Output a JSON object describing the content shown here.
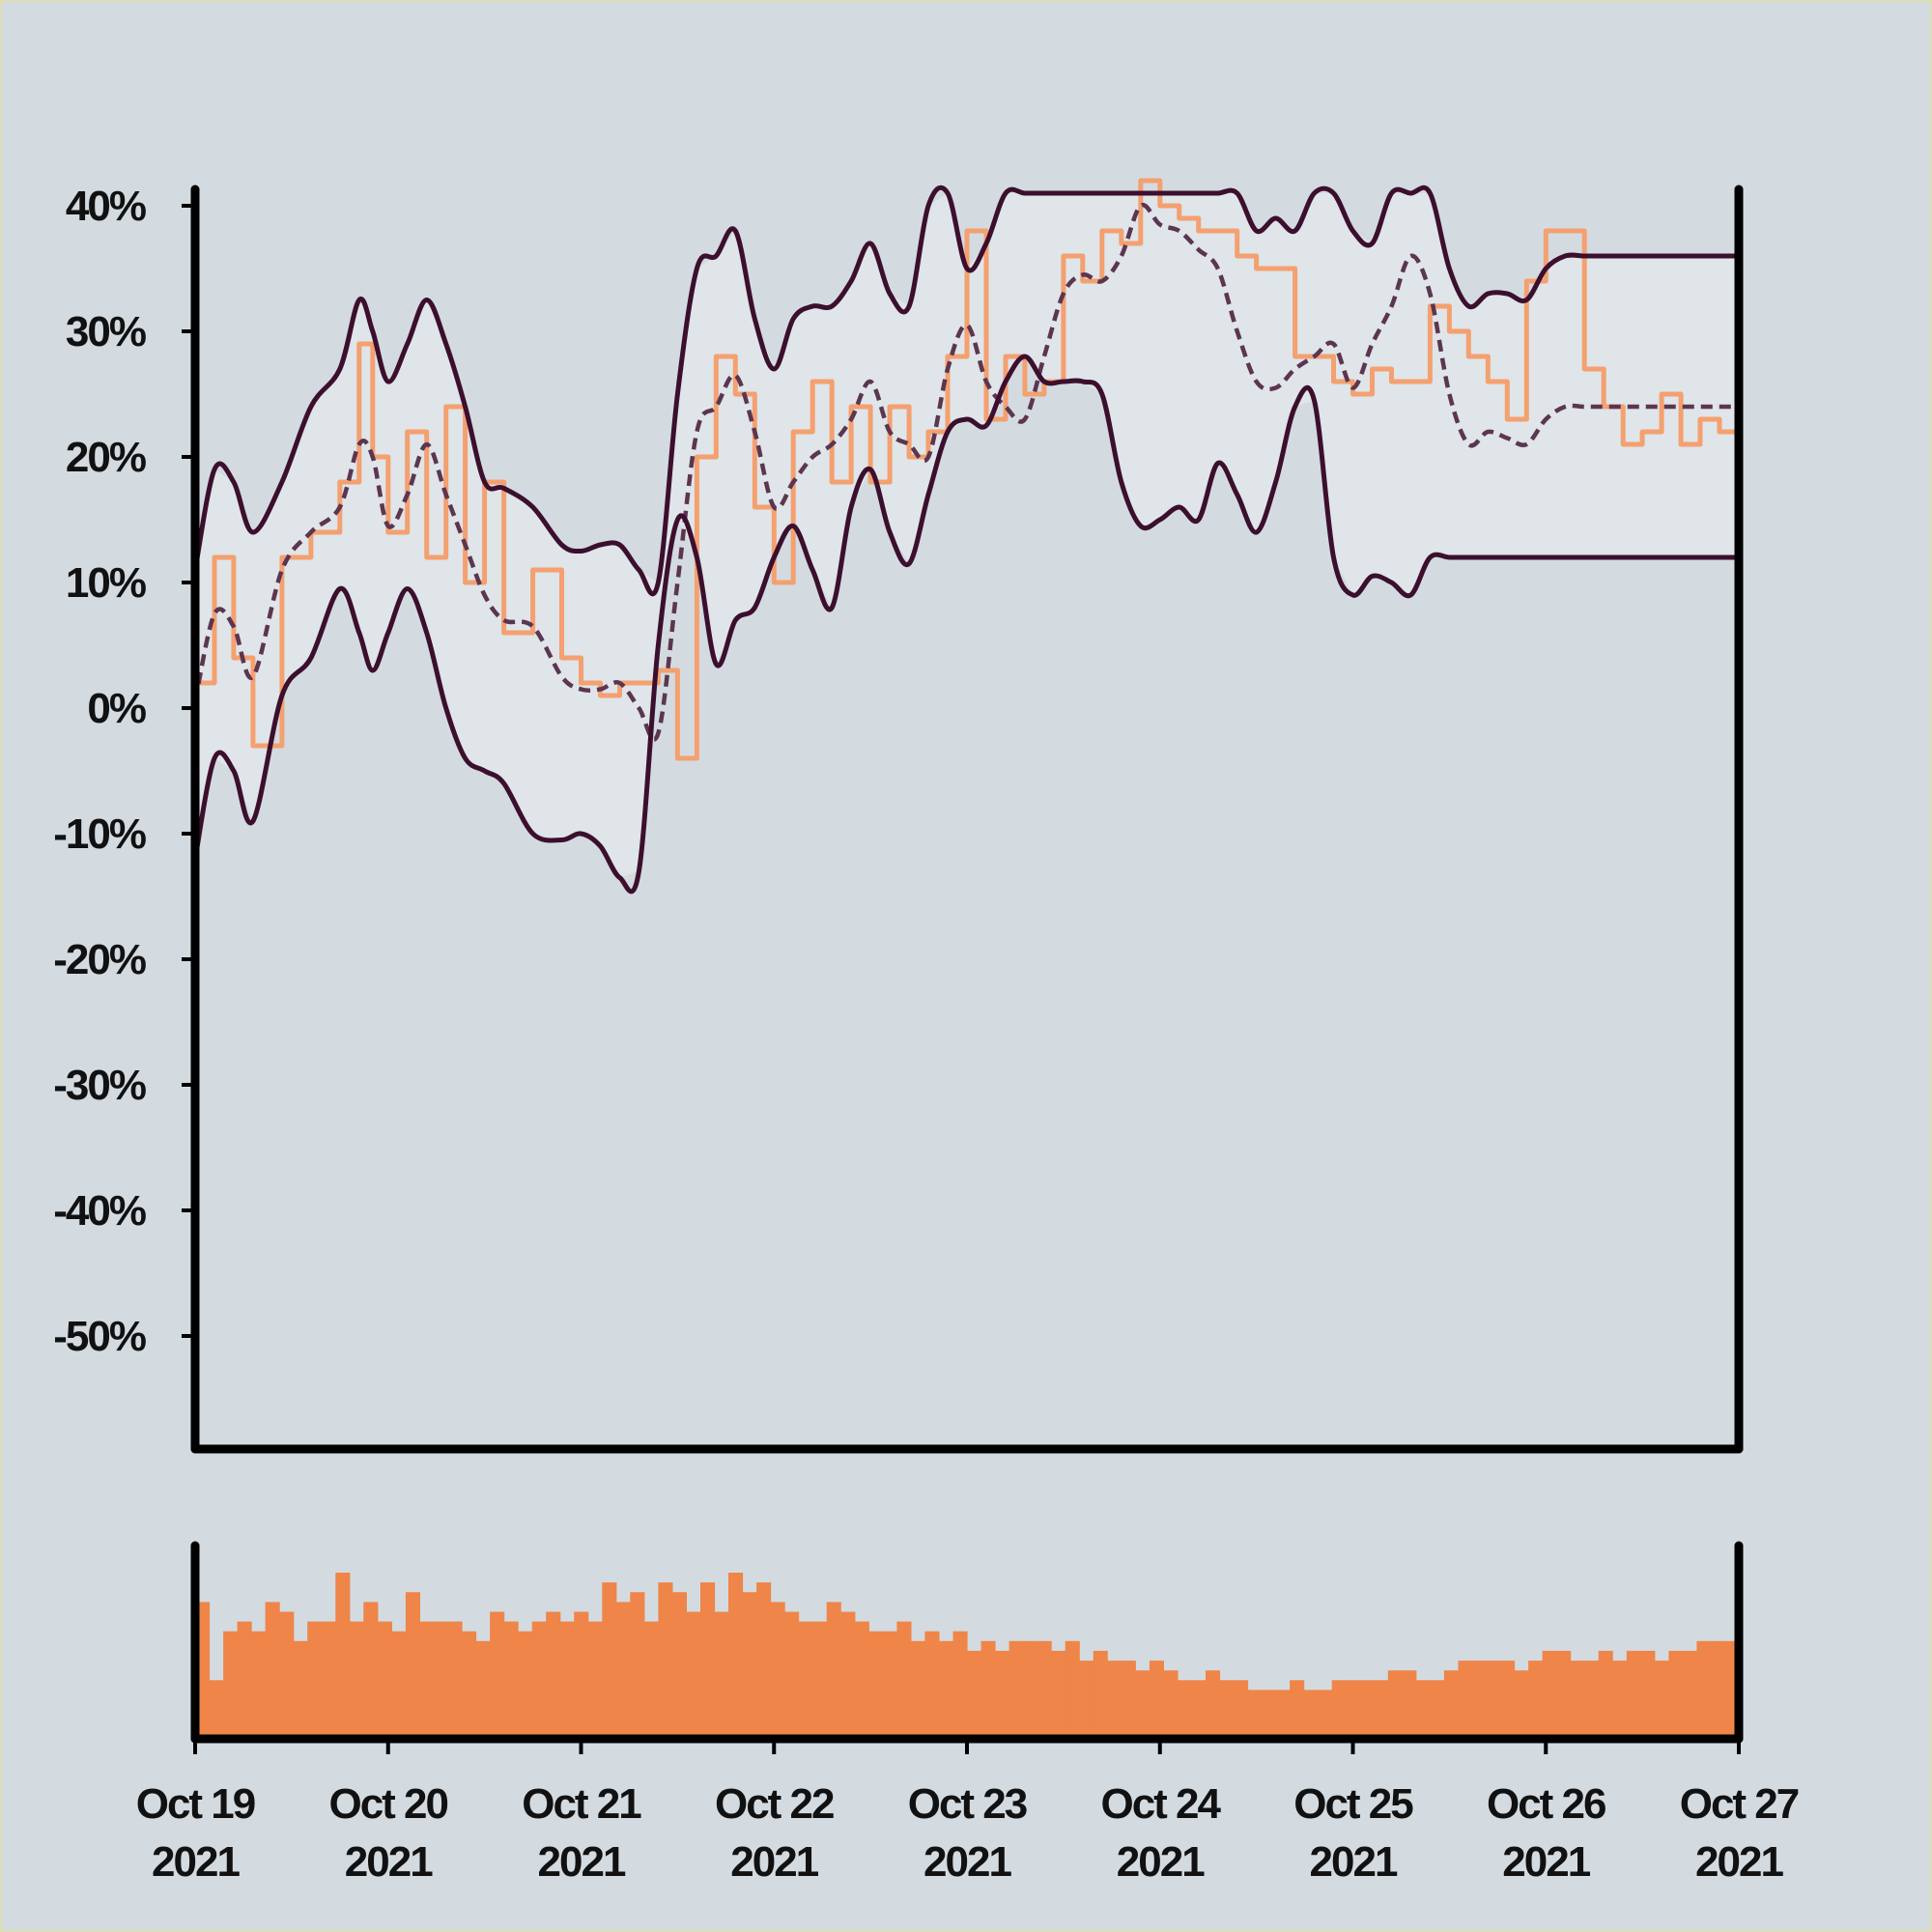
{
  "chart_data": {
    "type": "line",
    "title": "",
    "xlabel": "",
    "ylabel": "",
    "x_ticks": [
      {
        "day": 0,
        "line1": "Oct 19",
        "line2": "2021"
      },
      {
        "day": 1,
        "line1": "Oct 20",
        "line2": "2021"
      },
      {
        "day": 2,
        "line1": "Oct 21",
        "line2": "2021"
      },
      {
        "day": 3,
        "line1": "Oct 22",
        "line2": "2021"
      },
      {
        "day": 4,
        "line1": "Oct 23",
        "line2": "2021"
      },
      {
        "day": 5,
        "line1": "Oct 24",
        "line2": "2021"
      },
      {
        "day": 6,
        "line1": "Oct 25",
        "line2": "2021"
      },
      {
        "day": 7,
        "line1": "Oct 26",
        "line2": "2021"
      },
      {
        "day": 8,
        "line1": "Oct 27",
        "line2": "2021"
      }
    ],
    "y_ticks": [
      {
        "value": 40,
        "label": "40%"
      },
      {
        "value": 30,
        "label": "30%"
      },
      {
        "value": 20,
        "label": "20%"
      },
      {
        "value": 10,
        "label": "10%"
      },
      {
        "value": 0,
        "label": "0%"
      },
      {
        "value": -10,
        "label": "-10%"
      },
      {
        "value": -20,
        "label": "-20%"
      },
      {
        "value": -30,
        "label": "-30%"
      },
      {
        "value": -40,
        "label": "-40%"
      },
      {
        "value": -50,
        "label": "-50%"
      }
    ],
    "xlim": [
      0,
      8
    ],
    "ylim": [
      -59,
      41
    ],
    "colors": {
      "price": "#f4a070",
      "band": "#3c0f2e",
      "middle": "#5c3550",
      "fill": "#dfe5e8",
      "volume": "#ef8549",
      "axis": "#000000"
    },
    "series": [
      {
        "name": "price",
        "style": "orange step line",
        "x": [
          0,
          0.1,
          0.2,
          0.3,
          0.45,
          0.6,
          0.75,
          0.85,
          0.92,
          1.0,
          1.1,
          1.2,
          1.3,
          1.4,
          1.5,
          1.6,
          1.75,
          1.9,
          2.0,
          2.1,
          2.2,
          2.3,
          2.4,
          2.5,
          2.6,
          2.7,
          2.8,
          2.9,
          3.0,
          3.1,
          3.2,
          3.3,
          3.4,
          3.5,
          3.6,
          3.7,
          3.8,
          3.9,
          4.0,
          4.1,
          4.2,
          4.3,
          4.4,
          4.5,
          4.6,
          4.7,
          4.8,
          4.9,
          5.0,
          5.1,
          5.2,
          5.3,
          5.4,
          5.5,
          5.6,
          5.7,
          5.8,
          5.9,
          6.0,
          6.1,
          6.2,
          6.3,
          6.4,
          6.5,
          6.6,
          6.7,
          6.8,
          6.9,
          7.0,
          7.1,
          7.2,
          7.3,
          7.4,
          7.5,
          7.6,
          7.7,
          7.8,
          7.9,
          8.0
        ],
        "y": [
          2,
          12,
          4,
          -3,
          12,
          14,
          18,
          29,
          20,
          14,
          22,
          12,
          24,
          10,
          18,
          6,
          11,
          4,
          2,
          1,
          2,
          2,
          3,
          -4,
          20,
          28,
          25,
          16,
          10,
          22,
          26,
          18,
          24,
          18,
          24,
          20,
          22,
          28,
          38,
          23,
          28,
          25,
          26,
          36,
          34,
          38,
          37,
          42,
          40,
          39,
          38,
          38,
          36,
          35,
          35,
          28,
          28,
          26,
          25,
          27,
          26,
          26,
          32,
          30,
          28,
          26,
          23,
          34,
          38,
          38,
          27,
          24,
          21,
          22,
          25,
          21,
          23,
          22,
          27
        ]
      },
      {
        "name": "upper-band",
        "style": "dark solid line",
        "x": [
          0,
          0.1,
          0.2,
          0.3,
          0.45,
          0.6,
          0.75,
          0.85,
          0.92,
          1.0,
          1.1,
          1.2,
          1.3,
          1.4,
          1.5,
          1.6,
          1.75,
          1.9,
          2.0,
          2.1,
          2.2,
          2.3,
          2.4,
          2.5,
          2.6,
          2.7,
          2.8,
          2.9,
          3.0,
          3.1,
          3.2,
          3.3,
          3.4,
          3.5,
          3.6,
          3.7,
          3.8,
          3.9,
          4.0,
          4.1,
          4.2,
          4.3,
          4.4,
          4.5,
          4.6,
          4.7,
          4.8,
          4.9,
          5.0,
          5.1,
          5.2,
          5.3,
          5.4,
          5.5,
          5.6,
          5.7,
          5.8,
          5.9,
          6.0,
          6.1,
          6.2,
          6.3,
          6.4,
          6.5,
          6.6,
          6.7,
          6.8,
          6.9,
          7.0,
          7.1,
          7.2,
          7.3,
          7.4,
          7.5,
          7.6,
          7.7,
          7.8,
          7.9,
          8.0
        ],
        "y": [
          11,
          19,
          18,
          14,
          18,
          24,
          27,
          32.5,
          30,
          26,
          29,
          32.5,
          29,
          24,
          18,
          17.5,
          16,
          13,
          12.5,
          13,
          13,
          11,
          10,
          25,
          35,
          36,
          38,
          31,
          27,
          31,
          32,
          32,
          34,
          37,
          33,
          32,
          40,
          41,
          35,
          37,
          41,
          41,
          41,
          41,
          41,
          41,
          41,
          41,
          41,
          41,
          41,
          41,
          41,
          38,
          39,
          38,
          41,
          41,
          38,
          37,
          41,
          41,
          41,
          35,
          32,
          33,
          33,
          32.5,
          35,
          36,
          36,
          36,
          36,
          36,
          36,
          36,
          36,
          36,
          36
        ]
      },
      {
        "name": "middle-band",
        "style": "dashed line",
        "x": [
          0,
          0.1,
          0.2,
          0.3,
          0.45,
          0.6,
          0.75,
          0.85,
          0.92,
          1.0,
          1.1,
          1.2,
          1.3,
          1.4,
          1.5,
          1.6,
          1.75,
          1.9,
          2.0,
          2.1,
          2.2,
          2.3,
          2.4,
          2.5,
          2.6,
          2.7,
          2.8,
          2.9,
          3.0,
          3.1,
          3.2,
          3.3,
          3.4,
          3.5,
          3.6,
          3.7,
          3.8,
          3.9,
          4.0,
          4.1,
          4.2,
          4.3,
          4.4,
          4.5,
          4.6,
          4.7,
          4.8,
          4.9,
          5.0,
          5.1,
          5.2,
          5.3,
          5.4,
          5.5,
          5.6,
          5.7,
          5.8,
          5.9,
          6.0,
          6.1,
          6.2,
          6.3,
          6.4,
          6.5,
          6.6,
          6.7,
          6.8,
          6.9,
          7.0,
          7.1,
          7.2,
          7.3,
          7.4,
          7.5,
          7.6,
          7.7,
          7.8,
          7.9,
          8.0
        ],
        "y": [
          0.5,
          7.5,
          6.5,
          2.5,
          11,
          14,
          16,
          21,
          20,
          14.5,
          17,
          21,
          17,
          13,
          9,
          7,
          6.5,
          2.5,
          1.5,
          1.5,
          2,
          0,
          -2,
          10,
          22,
          24,
          26.5,
          22,
          16,
          18,
          20,
          21,
          23,
          26,
          22,
          21,
          20,
          27,
          30.5,
          26,
          24,
          23,
          28,
          33,
          34.5,
          34,
          36,
          40,
          38.5,
          38,
          36.5,
          35,
          30,
          26,
          25.5,
          27,
          28,
          29,
          25.5,
          29,
          32,
          36,
          33,
          25,
          21,
          22,
          21.5,
          21,
          23,
          24,
          24,
          24,
          24,
          24,
          24,
          24,
          24,
          24,
          24
        ]
      },
      {
        "name": "lower-band",
        "style": "dark solid line",
        "x": [
          0,
          0.1,
          0.2,
          0.3,
          0.45,
          0.6,
          0.75,
          0.85,
          0.92,
          1.0,
          1.1,
          1.2,
          1.3,
          1.4,
          1.5,
          1.6,
          1.75,
          1.9,
          2.0,
          2.1,
          2.2,
          2.3,
          2.4,
          2.5,
          2.6,
          2.7,
          2.8,
          2.9,
          3.0,
          3.1,
          3.2,
          3.3,
          3.4,
          3.5,
          3.6,
          3.7,
          3.8,
          3.9,
          4.0,
          4.1,
          4.2,
          4.3,
          4.4,
          4.5,
          4.6,
          4.7,
          4.8,
          4.9,
          5.0,
          5.1,
          5.2,
          5.3,
          5.4,
          5.5,
          5.6,
          5.7,
          5.8,
          5.9,
          6.0,
          6.1,
          6.2,
          6.3,
          6.4,
          6.5,
          6.6,
          6.7,
          6.8,
          6.9,
          7.0,
          7.1,
          7.2,
          7.3,
          7.4,
          7.5,
          7.6,
          7.7,
          7.8,
          7.9,
          8.0
        ],
        "y": [
          -12,
          -4,
          -5,
          -9,
          1,
          4,
          9.5,
          6,
          3,
          6,
          9.5,
          6,
          0,
          -4,
          -5,
          -6,
          -10,
          -10.5,
          -10,
          -11,
          -13.5,
          -13,
          5,
          15,
          12,
          3.5,
          7,
          8,
          12,
          14.5,
          11,
          8,
          16,
          19,
          14,
          11.5,
          17,
          22,
          23,
          22.5,
          26,
          28,
          26,
          26,
          26,
          25,
          18,
          14.5,
          15,
          16,
          15,
          19.5,
          17,
          14,
          18,
          24,
          24.5,
          12,
          9,
          10.5,
          10,
          9,
          12,
          12,
          12,
          12,
          12,
          12,
          12,
          12,
          12,
          12,
          12,
          12,
          12,
          12,
          12,
          12,
          12
        ]
      }
    ],
    "volume": {
      "x_start": 0,
      "x_end": 8,
      "values": [
        14,
        6,
        11,
        12,
        11,
        14,
        13,
        10,
        12,
        12,
        17,
        12,
        14,
        12,
        11,
        15,
        12,
        12,
        12,
        11,
        10,
        13,
        12,
        11,
        12,
        13,
        12,
        13,
        12,
        16,
        14,
        15,
        12,
        16,
        15,
        13,
        16,
        13,
        17,
        15,
        16,
        14,
        13,
        12,
        12,
        14,
        13,
        12,
        11,
        11,
        12,
        10,
        11,
        10,
        11,
        9,
        10,
        9,
        10,
        10,
        10,
        9,
        10,
        8,
        9,
        8,
        8,
        7,
        8,
        7,
        6,
        6,
        7,
        6,
        6,
        5,
        5,
        5,
        6,
        5,
        5,
        6,
        6,
        6,
        6,
        7,
        7,
        6,
        6,
        7,
        8,
        8,
        8,
        8,
        7,
        8,
        9,
        9,
        8,
        8,
        9,
        8,
        9,
        9,
        8,
        9,
        9,
        10,
        10,
        10
      ]
    }
  }
}
